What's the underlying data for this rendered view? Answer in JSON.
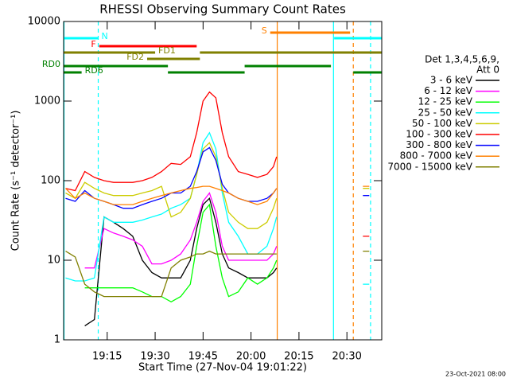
{
  "chart_data": {
    "type": "line",
    "title": "RHESSI Observing Summary Count Rates",
    "xlabel": "Start Time (27-Nov-04 19:01:22)",
    "ylabel": "Count Rate (s⁻¹ detector⁻¹)",
    "footnote": "23-Oct-2021 08:00",
    "legend_title": [
      "Det 1,3,4,5,6,9,",
      "Att 0"
    ],
    "log_y": true,
    "xlim": [
      1.37,
      100.9
    ],
    "ylim": [
      1,
      10000
    ],
    "xticks": [
      {
        "value": 15,
        "label": "19:15"
      },
      {
        "value": 30,
        "label": "19:30"
      },
      {
        "value": 45,
        "label": "19:45"
      },
      {
        "value": 60,
        "label": "20:00"
      },
      {
        "value": 75,
        "label": "20:15"
      },
      {
        "value": 90,
        "label": "20:30"
      }
    ],
    "yticks": [
      1,
      10,
      100,
      1000,
      10000
    ],
    "x": [
      2,
      5,
      8,
      11,
      14,
      17,
      20,
      23,
      26,
      29,
      32,
      35,
      38,
      41,
      43,
      45,
      47,
      49,
      51,
      53,
      56,
      59,
      62,
      65,
      67,
      68,
      80,
      95,
      97
    ],
    "series": [
      {
        "name": "3 - 6 keV",
        "color": "#000000",
        "values": [
          null,
          null,
          1.5,
          1.8,
          35,
          30,
          25,
          20,
          10,
          7,
          6,
          6,
          6,
          10,
          25,
          50,
          60,
          30,
          12,
          8,
          7,
          6,
          6,
          6,
          7,
          8,
          null,
          null,
          null
        ]
      },
      {
        "name": "6 - 12 keV",
        "color": "#ff00ff",
        "values": [
          null,
          null,
          8,
          8,
          25,
          22,
          20,
          18,
          15,
          9,
          9,
          10,
          12,
          18,
          30,
          55,
          70,
          40,
          15,
          10,
          10,
          10,
          10,
          10,
          12,
          15,
          null,
          null,
          null
        ]
      },
      {
        "name": "12 - 25 keV",
        "color": "#00ff00",
        "values": [
          null,
          null,
          4.5,
          4.5,
          4.5,
          4.5,
          4.5,
          4.5,
          4,
          3.5,
          3.5,
          3,
          3.5,
          5,
          15,
          40,
          50,
          15,
          6,
          3.5,
          4,
          6,
          5,
          6,
          8,
          10,
          null,
          null,
          null
        ]
      },
      {
        "name": "25 - 50 keV",
        "color": "#00ffff",
        "values": [
          6,
          5.5,
          5.5,
          6,
          35,
          30,
          30,
          30,
          32,
          35,
          38,
          45,
          50,
          60,
          120,
          300,
          400,
          250,
          70,
          30,
          20,
          12,
          12,
          15,
          25,
          35,
          null,
          5,
          5
        ]
      },
      {
        "name": "50 - 100 keV",
        "color": "#cccc00",
        "values": [
          70,
          60,
          95,
          80,
          70,
          65,
          65,
          65,
          70,
          75,
          85,
          35,
          40,
          60,
          120,
          250,
          300,
          200,
          80,
          40,
          30,
          25,
          25,
          30,
          45,
          60,
          null,
          80,
          80
        ]
      },
      {
        "name": "100 - 300 keV",
        "color": "#ff0000",
        "values": [
          80,
          75,
          130,
          110,
          100,
          95,
          95,
          95,
          100,
          110,
          130,
          165,
          160,
          200,
          400,
          1000,
          1300,
          1100,
          400,
          200,
          130,
          120,
          110,
          120,
          150,
          200,
          null,
          20,
          20
        ]
      },
      {
        "name": "300 - 800 keV",
        "color": "#0000ff",
        "values": [
          60,
          55,
          75,
          60,
          55,
          50,
          45,
          45,
          50,
          55,
          60,
          70,
          70,
          85,
          130,
          230,
          260,
          180,
          90,
          70,
          60,
          55,
          55,
          60,
          70,
          80,
          null,
          65,
          65
        ]
      },
      {
        "name": "800 - 7000 keV",
        "color": "#ff8000",
        "values": [
          80,
          60,
          70,
          60,
          55,
          50,
          50,
          50,
          55,
          60,
          65,
          70,
          75,
          80,
          82,
          85,
          85,
          80,
          75,
          70,
          60,
          55,
          50,
          55,
          70,
          80,
          null,
          85,
          85
        ]
      },
      {
        "name": "7000 - 15000 keV",
        "color": "#808000",
        "values": [
          13,
          11,
          5,
          4,
          3.5,
          3.5,
          3.5,
          3.5,
          3.5,
          3.5,
          3.5,
          8,
          10,
          11,
          12,
          12,
          13,
          12,
          12,
          12,
          12,
          12,
          12,
          12,
          12,
          12,
          null,
          13,
          13
        ]
      }
    ],
    "flags": [
      {
        "label": "S",
        "color": "#ff8000",
        "segments": [
          [
            66,
            91
          ]
        ]
      },
      {
        "label": "N",
        "color": "#00ffff",
        "segments": [
          [
            1.37,
            12.2
          ],
          [
            86,
            100.9
          ]
        ]
      },
      {
        "label": "F",
        "color": "#ff0000",
        "segments": [
          [
            12.5,
            43
          ]
        ]
      },
      {
        "label": "FD1",
        "color": "#808000",
        "segments": [
          [
            1.37,
            30
          ],
          [
            44,
            100.9
          ]
        ]
      },
      {
        "label": "FD2",
        "color": "#808000",
        "segments": [
          [
            27.5,
            44
          ]
        ]
      },
      {
        "label": "RD0",
        "color": "#008000",
        "segments": [
          [
            1.37,
            34
          ],
          [
            58,
            85
          ]
        ]
      },
      {
        "label": "RD6",
        "color": "#008000",
        "segments": [
          [
            1.37,
            7
          ],
          [
            34,
            58
          ],
          [
            92,
            100.9
          ]
        ]
      }
    ],
    "markers": [
      {
        "x": 1.5,
        "color": "#00ffff",
        "dashed": false
      },
      {
        "x": 12.2,
        "color": "#00ffff",
        "dashed": true
      },
      {
        "x": 68.2,
        "color": "#ff8000",
        "dashed": false
      },
      {
        "x": 85.8,
        "color": "#00ffff",
        "dashed": false
      },
      {
        "x": 92,
        "color": "#ff8000",
        "dashed": true
      },
      {
        "x": 97.4,
        "color": "#00ffff",
        "dashed": true
      }
    ]
  }
}
